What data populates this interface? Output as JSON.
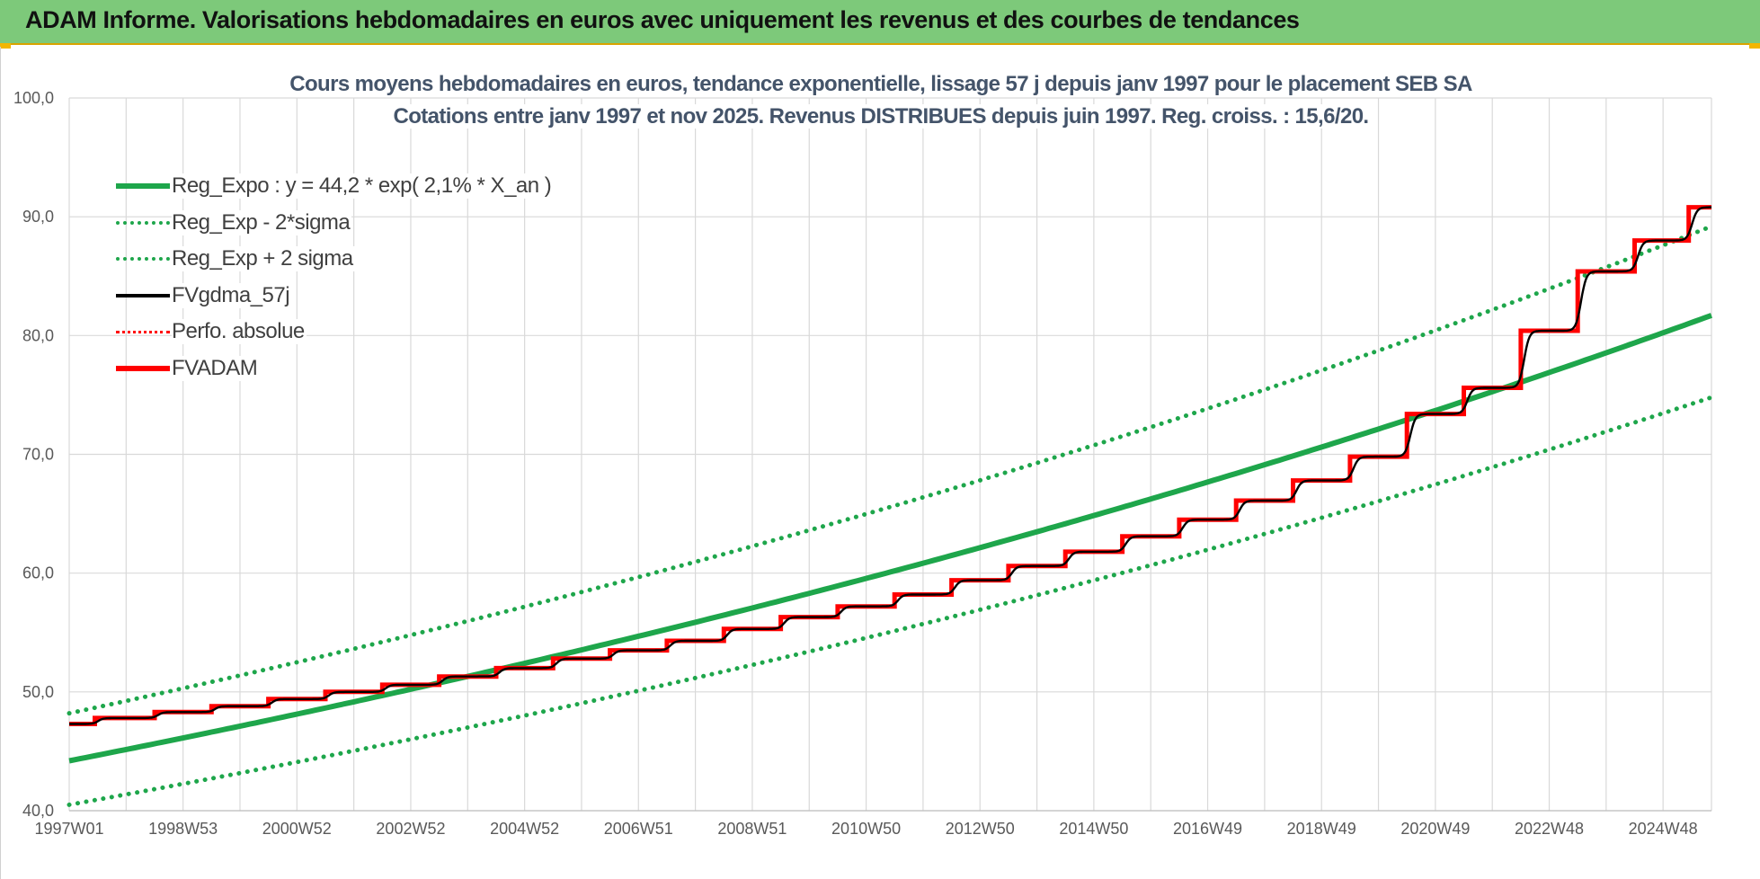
{
  "header": {
    "title": "ADAM Informe. Valorisations hebdomadaires en euros avec uniquement les revenus et des courbes de tendances"
  },
  "colors": {
    "banner": "#7dc97a",
    "trend_green": "#1ea64b",
    "adam_red": "#ff0000",
    "gdma_black": "#000000",
    "grid": "#d9d9d9"
  },
  "chart_data": {
    "type": "line",
    "title_line1": "Cours moyens hebdomadaires en euros, tendance exponentielle, lissage 57 j depuis janv 1997 pour le placement SEB SA",
    "title_line2": "Cotations entre janv 1997 et nov 2025. Revenus DISTRIBUES depuis juin 1997. Reg. croiss. : 15,6/20.",
    "x_tick_labels": [
      "1997W01",
      "1998W53",
      "2000W52",
      "2002W52",
      "2004W52",
      "2006W51",
      "2008W51",
      "2010W50",
      "2012W50",
      "2014W50",
      "2016W49",
      "2018W49",
      "2020W49",
      "2022W48",
      "2024W48"
    ],
    "x_range_years": [
      1997.0,
      2025.85
    ],
    "ylim": [
      40,
      100
    ],
    "y_tick_labels": [
      "40,0",
      "50,0",
      "60,0",
      "70,0",
      "80,0",
      "90,0",
      "100,0"
    ],
    "y_ticks": [
      40,
      50,
      60,
      70,
      80,
      90,
      100
    ],
    "grid": true,
    "legend_position": "top-left",
    "trend": {
      "formula": "y = 44,2 * exp( 2,1% * X_an )",
      "a": 44.2,
      "rate": 0.021,
      "end_value": 81.7,
      "lower_start": 40.5,
      "lower_end": 74.8,
      "upper_start": 48.2,
      "upper_end": 89.2
    },
    "series": [
      {
        "name": "Reg_Expo : y = 44,2 * exp( 2,1% *  X_an )",
        "style": "solid-thick",
        "color": "#1ea64b"
      },
      {
        "name": "Reg_Exp - 2*sigma",
        "style": "dotted",
        "color": "#1ea64b"
      },
      {
        "name": "Reg_Exp + 2 sigma",
        "style": "dotted",
        "color": "#1ea64b"
      },
      {
        "name": "FVgdma_57j",
        "style": "solid",
        "color": "#000000"
      },
      {
        "name": "Perfo. absolue",
        "style": "dotted",
        "color": "#ff0000"
      },
      {
        "name": "FVADAM",
        "style": "solid-thick",
        "color": "#ff0000"
      }
    ],
    "fvadam_steps": {
      "x": [
        1997.0,
        1997.45,
        1998.5,
        1999.5,
        2000.5,
        2001.5,
        2002.5,
        2003.5,
        2004.5,
        2005.5,
        2006.5,
        2007.5,
        2008.5,
        2009.5,
        2010.5,
        2011.5,
        2012.5,
        2013.5,
        2014.5,
        2015.5,
        2016.5,
        2017.5,
        2018.5,
        2019.5,
        2020.5,
        2021.5,
        2022.5,
        2023.5,
        2024.5,
        2025.45,
        2025.85
      ],
      "y": [
        47.3,
        47.8,
        48.3,
        48.8,
        49.4,
        50.0,
        50.6,
        51.3,
        52.0,
        52.8,
        53.5,
        54.3,
        55.3,
        56.3,
        57.2,
        58.2,
        59.4,
        60.6,
        61.8,
        63.1,
        64.5,
        66.1,
        67.8,
        69.8,
        73.4,
        75.6,
        80.4,
        85.4,
        88.0,
        90.8,
        90.8
      ]
    }
  }
}
